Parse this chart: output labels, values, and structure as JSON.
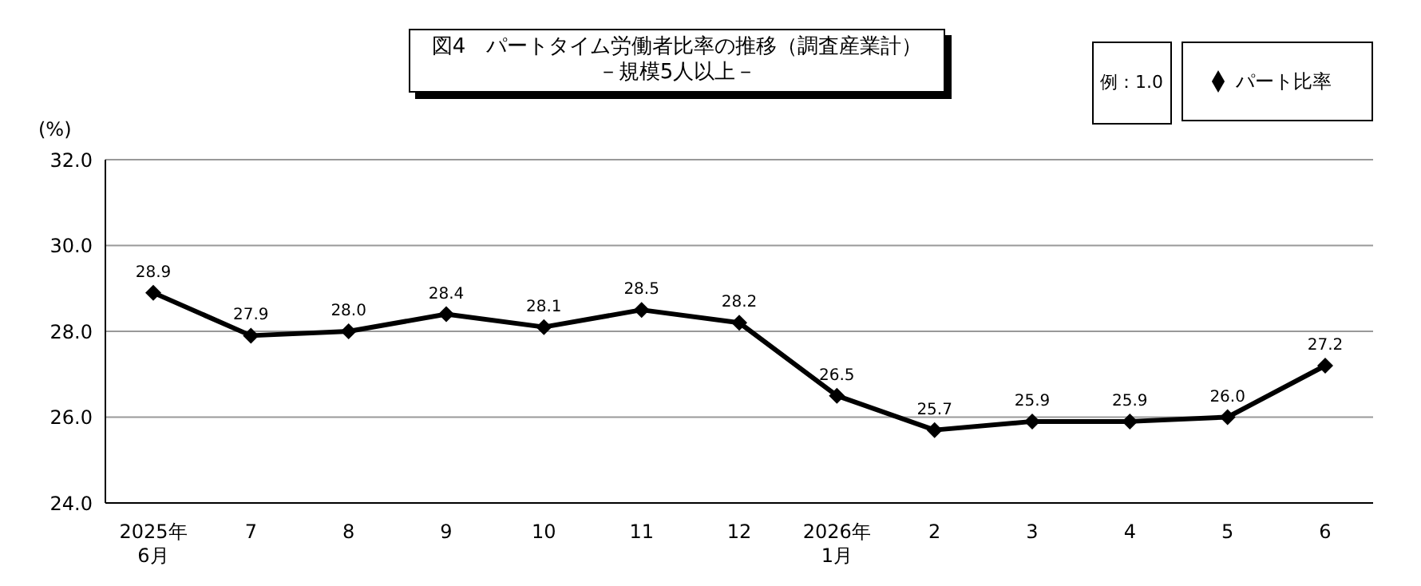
{
  "chart_data": {
    "type": "line",
    "title": "図4　パートタイム労働者比率の推移（調査産業計）",
    "subtitle": "－規模5人以上－",
    "ylabel": "(%)",
    "annotations": [
      "例：1.0"
    ],
    "categories": [
      "2025年\n6月",
      "7",
      "8",
      "9",
      "10",
      "11",
      "12",
      "2026年\n1月",
      "2",
      "3",
      "4",
      "5",
      "6"
    ],
    "series": [
      {
        "name": "パート比率",
        "color": "#000000",
        "values": [
          28.9,
          27.9,
          28.0,
          28.4,
          28.1,
          28.5,
          28.2,
          26.5,
          25.7,
          25.9,
          25.9,
          26.0,
          27.2
        ],
        "value_labels": [
          "28.9",
          "27.9",
          "28.0",
          "28.4",
          "28.1",
          "28.5",
          "28.2",
          "26.5",
          "25.7",
          "25.9",
          "25.9",
          "26.0",
          "27.2"
        ]
      }
    ],
    "ylim": [
      24.0,
      32.0
    ],
    "yticks": [
      {
        "value": 24,
        "label": "24.0"
      },
      {
        "value": 26,
        "label": "26.0"
      },
      {
        "value": 28,
        "label": "28.0"
      },
      {
        "value": 30,
        "label": "30.0"
      },
      {
        "value": 32,
        "label": "32.0"
      }
    ],
    "grid": "y",
    "legend": "top right",
    "marker": "diamond",
    "line_style": "solid"
  }
}
